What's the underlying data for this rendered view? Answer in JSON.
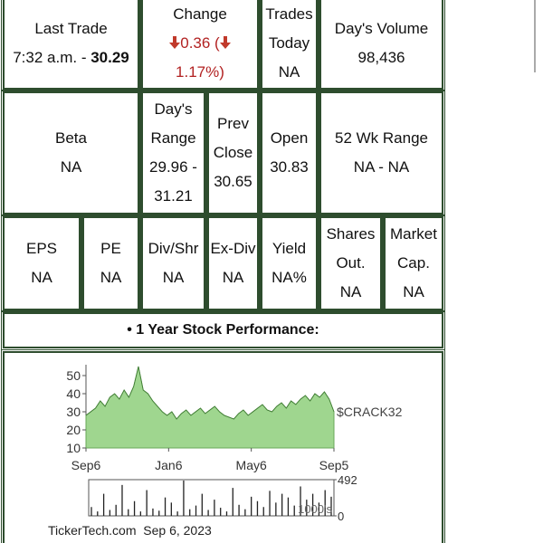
{
  "table": {
    "row1": [
      {
        "label": "Last Trade",
        "time": "7:32 a.m. -",
        "price": "30.29"
      },
      {
        "label": "Change",
        "amount": "0.36 (",
        "percent": "1.17%)"
      },
      {
        "label": "Trades Today",
        "value": "NA"
      },
      {
        "label": "Day's Volume",
        "value": "98,436"
      }
    ],
    "row2": [
      {
        "label": "Beta",
        "value": "NA"
      },
      {
        "label": "Day's Range",
        "value": "29.96 - 31.21"
      },
      {
        "label": "Prev Close",
        "value": "30.65"
      },
      {
        "label": "Open",
        "value": "30.83"
      },
      {
        "label": "52 Wk Range",
        "value": "NA - NA"
      }
    ],
    "row3": [
      {
        "label": "EPS",
        "value": "NA"
      },
      {
        "label": "PE",
        "value": "NA"
      },
      {
        "label": "Div/Shr",
        "value": "NA"
      },
      {
        "label": "Ex-Div",
        "value": "NA"
      },
      {
        "label": "Yield",
        "value": "NA%"
      },
      {
        "label": "Shares Out.",
        "value": "NA"
      },
      {
        "label": "Market Cap.",
        "value": "NA"
      }
    ],
    "chart_heading": "• 1 Year Stock Performance:"
  },
  "chart_data": {
    "type": "area",
    "series": [
      {
        "name": "$CRACK32",
        "color": "#9fd68f",
        "values": [
          28,
          30,
          32,
          36,
          33,
          38,
          40,
          37,
          42,
          38,
          44,
          55,
          42,
          40,
          36,
          33,
          30,
          28,
          30,
          26,
          29,
          31,
          28,
          30,
          32,
          29,
          31,
          33,
          30,
          28,
          27,
          26,
          29,
          31,
          28,
          30,
          32,
          34,
          31,
          30,
          33,
          35,
          32,
          36,
          34,
          37,
          39,
          36,
          40,
          38,
          41,
          37,
          30
        ]
      }
    ],
    "xtick_labels": [
      "Sep6",
      "Jan6",
      "May6",
      "Sep5"
    ],
    "ylim": [
      10,
      56
    ],
    "yticks": [
      10,
      20,
      30,
      40,
      50
    ],
    "grid": false,
    "volume": {
      "values": [
        120,
        60,
        300,
        80,
        150,
        420,
        90,
        200,
        60,
        350,
        100,
        70,
        250,
        180,
        60,
        480,
        90,
        140,
        300,
        80,
        220,
        110,
        60,
        380,
        150,
        90,
        260,
        200,
        120,
        340,
        180,
        300,
        250,
        140,
        400,
        220,
        300,
        180,
        350,
        260
      ],
      "ylim": [
        0,
        492
      ],
      "yticks": [
        0,
        492
      ],
      "unit_label": "1000's"
    },
    "footer": "TickerTech.com  Sep 6, 2023"
  }
}
